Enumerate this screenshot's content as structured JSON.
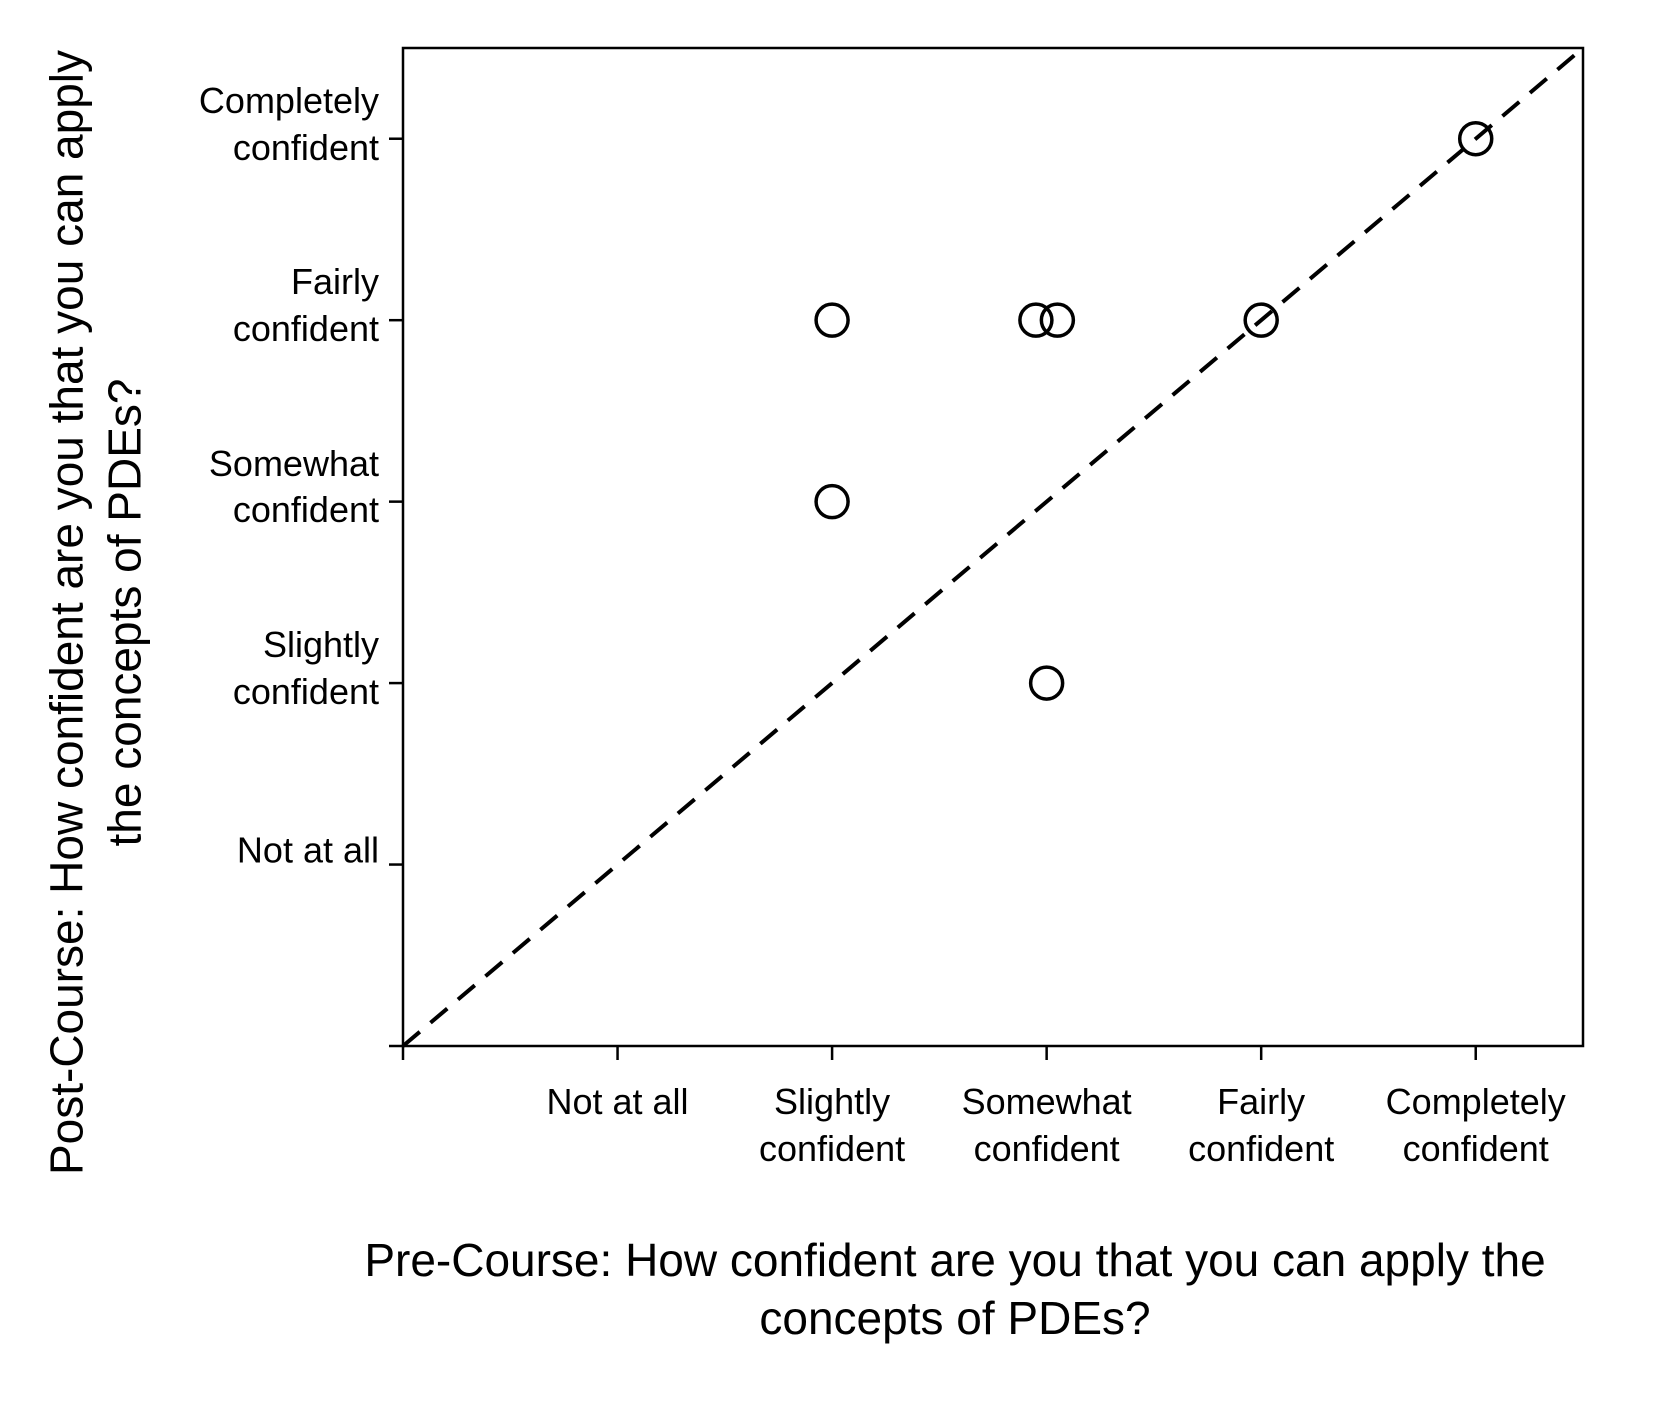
{
  "chart_data": {
    "type": "scatter",
    "x_label": "Pre-Course: How confident are you that you can apply the concepts of PDEs?",
    "y_label": "Post-Course: How confident are you that you can apply the concepts of PDEs?",
    "x": [
      2,
      2.95,
      3.05,
      4,
      2,
      3,
      5
    ],
    "values": [
      4,
      4,
      4,
      4,
      3,
      2,
      5
    ],
    "color": "#000000",
    "xlim": [
      0,
      5.5
    ],
    "ylim": [
      0,
      5.5
    ],
    "xticks": [
      {
        "value": 1,
        "label": "Not at all"
      },
      {
        "value": 2,
        "label": "Slightly confident"
      },
      {
        "value": 3,
        "label": "Somewhat confident"
      },
      {
        "value": 4,
        "label": "Fairly confident"
      },
      {
        "value": 5,
        "label": "Completely confident"
      }
    ],
    "yticks": [
      {
        "value": 1,
        "label": "Not at all"
      },
      {
        "value": 2,
        "label": "Slightly confident"
      },
      {
        "value": 3,
        "label": "Somewhat confident"
      },
      {
        "value": 4,
        "label": "Fairly confident"
      },
      {
        "value": 5,
        "label": "Completely confident"
      }
    ],
    "reference_line": "diagonal"
  }
}
